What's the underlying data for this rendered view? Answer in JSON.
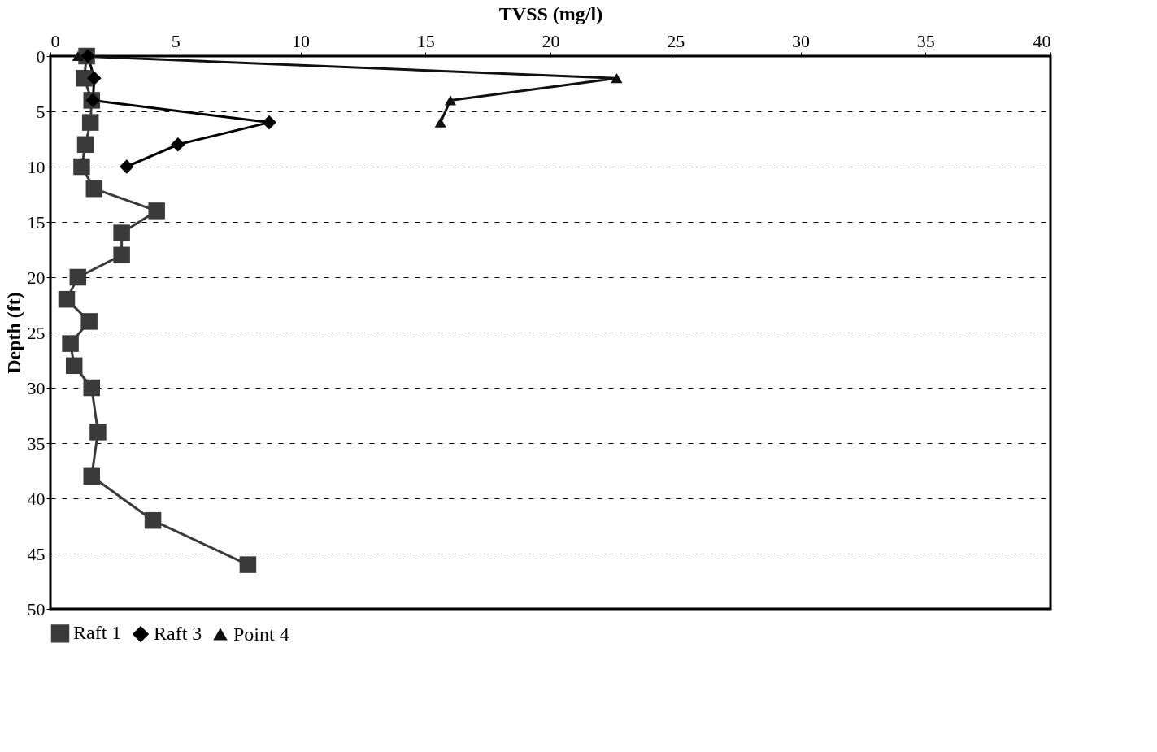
{
  "chart_data": {
    "type": "line",
    "xlabel": "TVSS (mg/l)",
    "ylabel": "Depth (ft)",
    "xlim": [
      0,
      40
    ],
    "xticks": [
      0,
      5,
      10,
      15,
      20,
      25,
      30,
      35,
      40
    ],
    "ylim": [
      50,
      0
    ],
    "yticks": [
      0,
      5,
      10,
      15,
      20,
      25,
      30,
      35,
      40,
      45,
      50
    ],
    "grid": "y",
    "legend": "bottom",
    "line_style": "solid",
    "series": [
      {
        "name": "Raft 1",
        "color": "#3a3a3a",
        "marker": "square",
        "x": [
          1.45,
          1.35,
          1.65,
          1.6,
          1.4,
          1.25,
          1.75,
          4.25,
          2.85,
          2.85,
          1.1,
          0.65,
          1.55,
          0.8,
          0.95,
          1.65,
          1.9,
          1.65,
          4.1,
          7.9
        ],
        "values": [
          0,
          2,
          4,
          6,
          8,
          10,
          12,
          14,
          16,
          18,
          20,
          22,
          24,
          26,
          28,
          30,
          34,
          38,
          42,
          46
        ]
      },
      {
        "name": "Raft 3",
        "color": "#000000",
        "marker": "diamond",
        "x": [
          1.5,
          1.75,
          1.7,
          8.75,
          5.1,
          3.05
        ],
        "values": [
          0,
          2,
          4,
          6,
          8,
          10
        ]
      },
      {
        "name": "Point 4",
        "color": "#111111",
        "marker": "triangle",
        "x": [
          1.1,
          22.65,
          16.0,
          15.6
        ],
        "values": [
          0,
          2,
          4,
          6
        ]
      }
    ]
  }
}
